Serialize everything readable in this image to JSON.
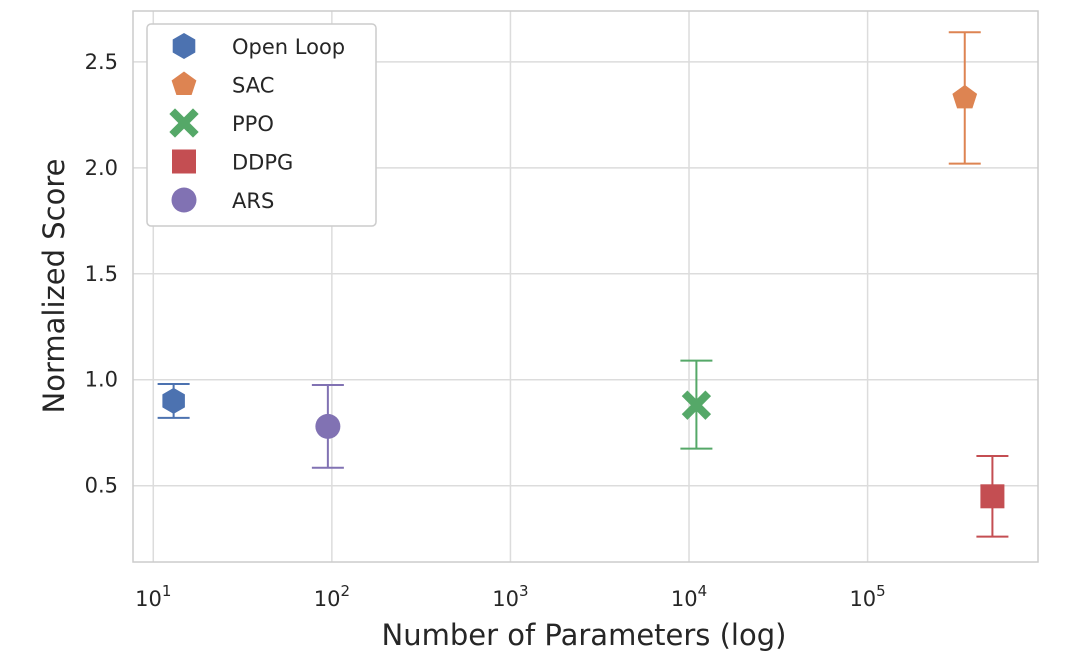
{
  "chart_data": {
    "type": "scatter",
    "title": "",
    "xlabel": "Number of Parameters (log)",
    "ylabel": "Normalized Score",
    "x_scale": "log",
    "xlim": [
      7.7,
      900000
    ],
    "ylim": [
      0.14,
      2.74
    ],
    "grid": true,
    "legend_position": "top-left",
    "x_ticks": [
      {
        "value": 10,
        "base": "10",
        "exp": "1"
      },
      {
        "value": 100,
        "base": "10",
        "exp": "2"
      },
      {
        "value": 1000,
        "base": "10",
        "exp": "3"
      },
      {
        "value": 10000,
        "base": "10",
        "exp": "4"
      },
      {
        "value": 100000,
        "base": "10",
        "exp": "5"
      }
    ],
    "y_ticks": [
      {
        "value": 0.5,
        "label": "0.5"
      },
      {
        "value": 1.0,
        "label": "1.0"
      },
      {
        "value": 1.5,
        "label": "1.5"
      },
      {
        "value": 2.0,
        "label": "2.0"
      },
      {
        "value": 2.5,
        "label": "2.5"
      }
    ],
    "series": [
      {
        "name": "Open Loop",
        "marker": "hexagon",
        "color": "#4C72B0",
        "x": 13,
        "y": 0.9,
        "err_low": 0.82,
        "err_high": 0.98
      },
      {
        "name": "SAC",
        "marker": "pentagon",
        "color": "#DD8452",
        "x": 350000,
        "y": 2.33,
        "err_low": 2.02,
        "err_high": 2.64
      },
      {
        "name": "PPO",
        "marker": "x",
        "color": "#55A868",
        "x": 11000,
        "y": 0.88,
        "err_low": 0.675,
        "err_high": 1.09
      },
      {
        "name": "DDPG",
        "marker": "square",
        "color": "#C44E52",
        "x": 500000,
        "y": 0.45,
        "err_low": 0.26,
        "err_high": 0.64
      },
      {
        "name": "ARS",
        "marker": "circle",
        "color": "#8172B3",
        "x": 95,
        "y": 0.78,
        "err_low": 0.585,
        "err_high": 0.975
      }
    ]
  }
}
